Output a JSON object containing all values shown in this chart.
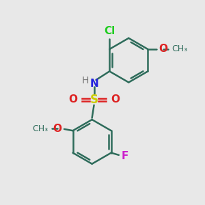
{
  "bg_color": "#e8e8e8",
  "ring_color": "#2d6b5a",
  "bond_width": 1.8,
  "atoms": {
    "Cl": {
      "color": "#22cc22",
      "fontsize": 11
    },
    "O": {
      "color": "#dd2222",
      "fontsize": 11
    },
    "N": {
      "color": "#2222dd",
      "fontsize": 11
    },
    "H": {
      "color": "#777777",
      "fontsize": 10
    },
    "S": {
      "color": "#cccc00",
      "fontsize": 12
    },
    "F": {
      "color": "#cc22cc",
      "fontsize": 11
    },
    "CH3": {
      "color": "#2d6b5a",
      "fontsize": 9
    }
  }
}
